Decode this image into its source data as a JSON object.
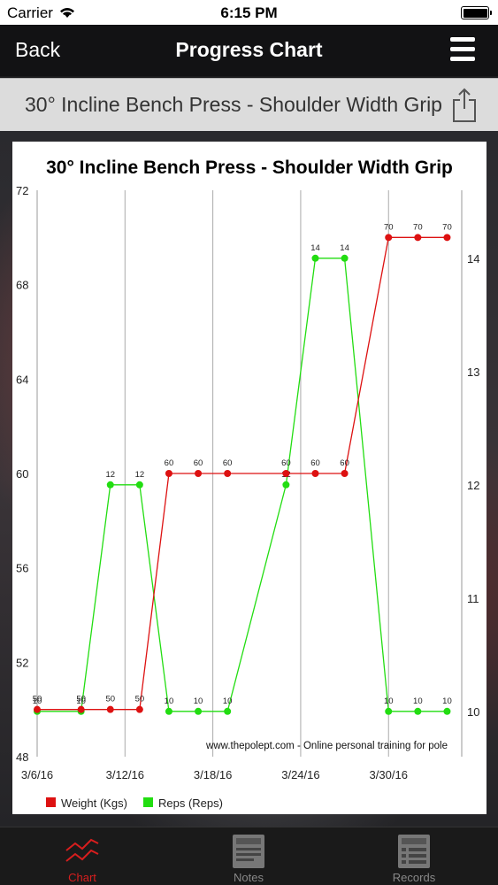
{
  "status_bar": {
    "carrier": "Carrier",
    "time": "6:15 PM"
  },
  "nav": {
    "back_label": "Back",
    "title": "Progress Chart"
  },
  "exercise": {
    "name": "30° Incline Bench Press - Shoulder Width Grip"
  },
  "colors": {
    "weight_series": "#dd1111",
    "reps_series": "#22dd11",
    "tab_active": "#d81e1e",
    "tab_inactive": "#888888"
  },
  "tabs": [
    {
      "label": "Chart",
      "icon": "chart-icon",
      "active": true
    },
    {
      "label": "Notes",
      "icon": "notes-icon",
      "active": false
    },
    {
      "label": "Records",
      "icon": "records-icon",
      "active": false
    }
  ],
  "chart_data": {
    "type": "line",
    "title": "30° Incline Bench Press - Shoulder Width Grip",
    "watermark": "www.thepolept.com - Online personal training for pole",
    "x_ticks": [
      "3/6/16",
      "3/12/16",
      "3/18/16",
      "3/24/16",
      "3/30/16"
    ],
    "x_range_days": [
      0,
      29
    ],
    "left_axis": {
      "ticks": [
        48,
        52,
        56,
        60,
        64,
        68,
        72
      ],
      "range": [
        48,
        72
      ]
    },
    "right_axis": {
      "ticks": [
        10,
        11,
        12,
        13,
        14
      ],
      "range": [
        9.6,
        14.6
      ]
    },
    "grid": "vertical",
    "legend_position": "bottom-left",
    "series": [
      {
        "name": "Weight (Kgs)",
        "axis": "left",
        "points": [
          {
            "x": "3/6/16",
            "y": 50
          },
          {
            "x": "3/9/16",
            "y": 50
          },
          {
            "x": "3/11/16",
            "y": 50
          },
          {
            "x": "3/13/16",
            "y": 50
          },
          {
            "x": "3/15/16",
            "y": 60
          },
          {
            "x": "3/17/16",
            "y": 60
          },
          {
            "x": "3/19/16",
            "y": 60
          },
          {
            "x": "3/23/16",
            "y": 60
          },
          {
            "x": "3/25/16",
            "y": 60
          },
          {
            "x": "3/27/16",
            "y": 60
          },
          {
            "x": "3/30/16",
            "y": 70
          },
          {
            "x": "4/1/16",
            "y": 70
          },
          {
            "x": "4/3/16",
            "y": 70
          }
        ]
      },
      {
        "name": "Reps (Reps)",
        "axis": "right",
        "points": [
          {
            "x": "3/6/16",
            "y": 10
          },
          {
            "x": "3/9/16",
            "y": 10
          },
          {
            "x": "3/11/16",
            "y": 12
          },
          {
            "x": "3/13/16",
            "y": 12
          },
          {
            "x": "3/15/16",
            "y": 10
          },
          {
            "x": "3/17/16",
            "y": 10
          },
          {
            "x": "3/19/16",
            "y": 10
          },
          {
            "x": "3/23/16",
            "y": 12
          },
          {
            "x": "3/25/16",
            "y": 14
          },
          {
            "x": "3/27/16",
            "y": 14
          },
          {
            "x": "3/30/16",
            "y": 10
          },
          {
            "x": "4/1/16",
            "y": 10
          },
          {
            "x": "4/3/16",
            "y": 10
          }
        ]
      }
    ]
  }
}
